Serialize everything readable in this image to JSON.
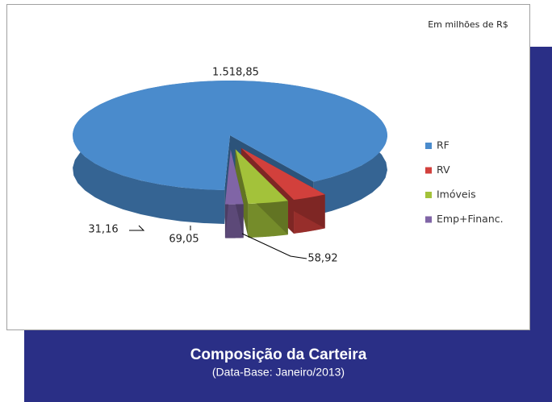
{
  "chart_data": {
    "type": "pie",
    "note": "Em milhões de R$",
    "title": "Composição da Carteira",
    "subtitle": "(Data-Base: Janeiro/2013)",
    "categories": [
      "RF",
      "RV",
      "Imóveis",
      "Emp+Financ."
    ],
    "values": [
      1518.85,
      58.92,
      69.05,
      31.16
    ],
    "value_labels": [
      "1.518,85",
      "58,92",
      "69,05",
      "31,16"
    ],
    "colors": [
      "#4a8bcc",
      "#d2403c",
      "#a3c23a",
      "#8065a6"
    ],
    "legend": "right"
  }
}
